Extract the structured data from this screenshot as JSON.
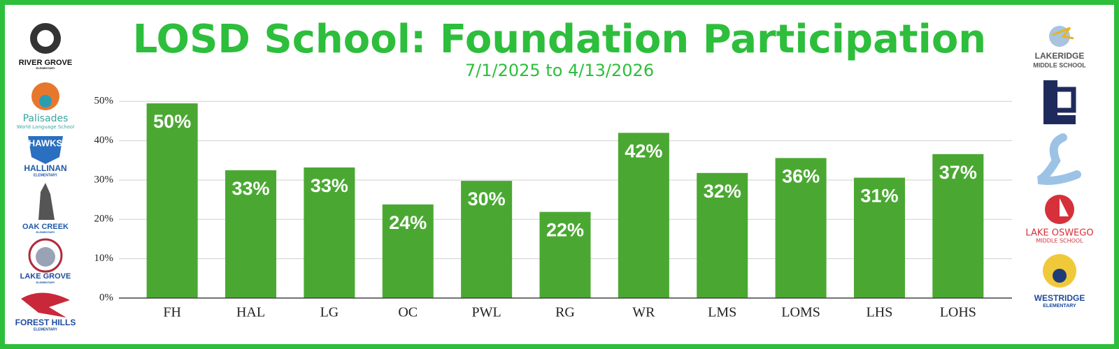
{
  "chart_data": {
    "type": "bar",
    "title": "LOSD School: Foundation Participation",
    "subtitle": "7/1/2025 to 4/13/2026",
    "categories": [
      "FH",
      "HAL",
      "LG",
      "OC",
      "PWL",
      "RG",
      "WR",
      "LMS",
      "LOMS",
      "LHS",
      "LOHS"
    ],
    "values": [
      49.5,
      32.5,
      33.2,
      23.8,
      29.8,
      21.9,
      42,
      31.8,
      35.6,
      30.6,
      36.6
    ],
    "value_labels": [
      "50%",
      "33%",
      "33%",
      "24%",
      "30%",
      "22%",
      "42%",
      "32%",
      "36%",
      "31%",
      "37%"
    ],
    "color": "#4aa832",
    "ylim": [
      0,
      52
    ],
    "yticks": [
      {
        "value": 0,
        "label": "0%"
      },
      {
        "value": 10,
        "label": "10%"
      },
      {
        "value": 20,
        "label": "20%"
      },
      {
        "value": 30,
        "label": "30%"
      },
      {
        "value": 40,
        "label": "40%"
      },
      {
        "value": 50,
        "label": "50%"
      }
    ],
    "grid": true
  },
  "logos": {
    "left": [
      [
        "RIVER GROVE",
        "ELEMENTARY"
      ],
      [
        "Palisades",
        "World Language School"
      ],
      [
        "HAWKS",
        "HALLINAN",
        "ELEMENTARY"
      ],
      [
        "OAK CREEK",
        "ELEMENTARY"
      ],
      [
        "LAKE GROVE",
        "ELEMENTARY"
      ],
      [
        "FOREST HILLS",
        "ELEMENTARY"
      ]
    ],
    "right": [
      [
        "LAKERIDGE",
        "MIDDLE SCHOOL"
      ],
      [
        "LAKE OSWEGO",
        "MIDDLE SCHOOL"
      ],
      [
        "WESTRIDGE",
        "ELEMENTARY"
      ]
    ]
  }
}
